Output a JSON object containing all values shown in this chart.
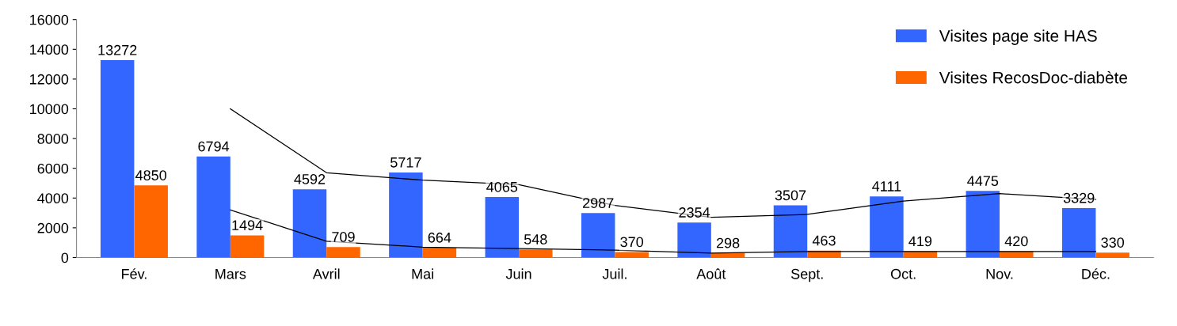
{
  "chart_data": {
    "type": "bar",
    "categories": [
      "Fév.",
      "Mars",
      "Avril",
      "Mai",
      "Juin",
      "Juil.",
      "Août",
      "Sept.",
      "Oct.",
      "Nov.",
      "Déc."
    ],
    "series": [
      {
        "name": "Visites page site HAS",
        "color": "#3366ff",
        "values": [
          13272,
          6794,
          4592,
          5717,
          4065,
          2987,
          2354,
          3507,
          4111,
          4475,
          3329
        ],
        "value_labels": [
          "13272",
          "6794",
          "4592",
          "5717",
          "4065",
          "2987",
          "2354",
          "3507",
          "4111",
          "4475",
          "3329"
        ]
      },
      {
        "name": "Visites RecosDoc-diabète",
        "color": "#ff6600",
        "values": [
          4850,
          1494,
          709,
          664,
          548,
          370,
          298,
          463,
          419,
          420,
          330
        ],
        "value_labels": [
          "4850",
          "1494",
          "709",
          "664",
          "548",
          "370",
          "298",
          "463",
          "419",
          "420",
          "330"
        ]
      },
      {
        "type": "line",
        "color": "#000000",
        "values": [
          null,
          10000,
          5700,
          5200,
          4900,
          3500,
          2700,
          2900,
          3800,
          4300,
          3900
        ]
      },
      {
        "type": "line",
        "color": "#000000",
        "values": [
          null,
          3200,
          1100,
          700,
          600,
          500,
          300,
          400,
          400,
          400,
          400
        ]
      }
    ],
    "ylim": [
      0,
      16000
    ],
    "yticks": [
      0,
      2000,
      4000,
      6000,
      8000,
      10000,
      12000,
      14000,
      16000
    ],
    "grid": false,
    "legend": "top right"
  }
}
